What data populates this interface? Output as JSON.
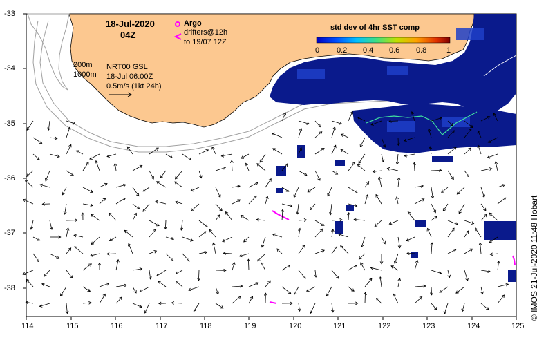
{
  "map": {
    "date": "18-Jul-2020",
    "time": "04Z",
    "argo_label": "Argo",
    "drifters_label": "drifters@12h",
    "drifters_to": "to 19/07 12Z",
    "contour_200": "200m",
    "contour_1000": "1000m",
    "product": "NRT00 GSL",
    "product_time": "18-Jul 06:00Z",
    "scale_label": "0.5m/s (1kt 24h)",
    "colorbar_title": "std dev of 4hr SST comp",
    "colorbar_ticks": [
      "0",
      "0.2",
      "0.4",
      "0.6",
      "0.8",
      "1"
    ],
    "credit": "© IMOS 21-Jul-2020 11:48 Hobart",
    "lon_ticks": [
      "114",
      "115",
      "116",
      "117",
      "118",
      "119",
      "120",
      "121",
      "122",
      "123",
      "124",
      "125"
    ],
    "lat_ticks": [
      "-33",
      "-34",
      "-35",
      "-36",
      "-37",
      "-38"
    ],
    "colors": {
      "land": "#fcc890",
      "sst_dark": "#0a1a8c",
      "sst_mid": "#1e40c8",
      "argo": "#ff00ff",
      "contour": "#a0a0a0"
    }
  }
}
